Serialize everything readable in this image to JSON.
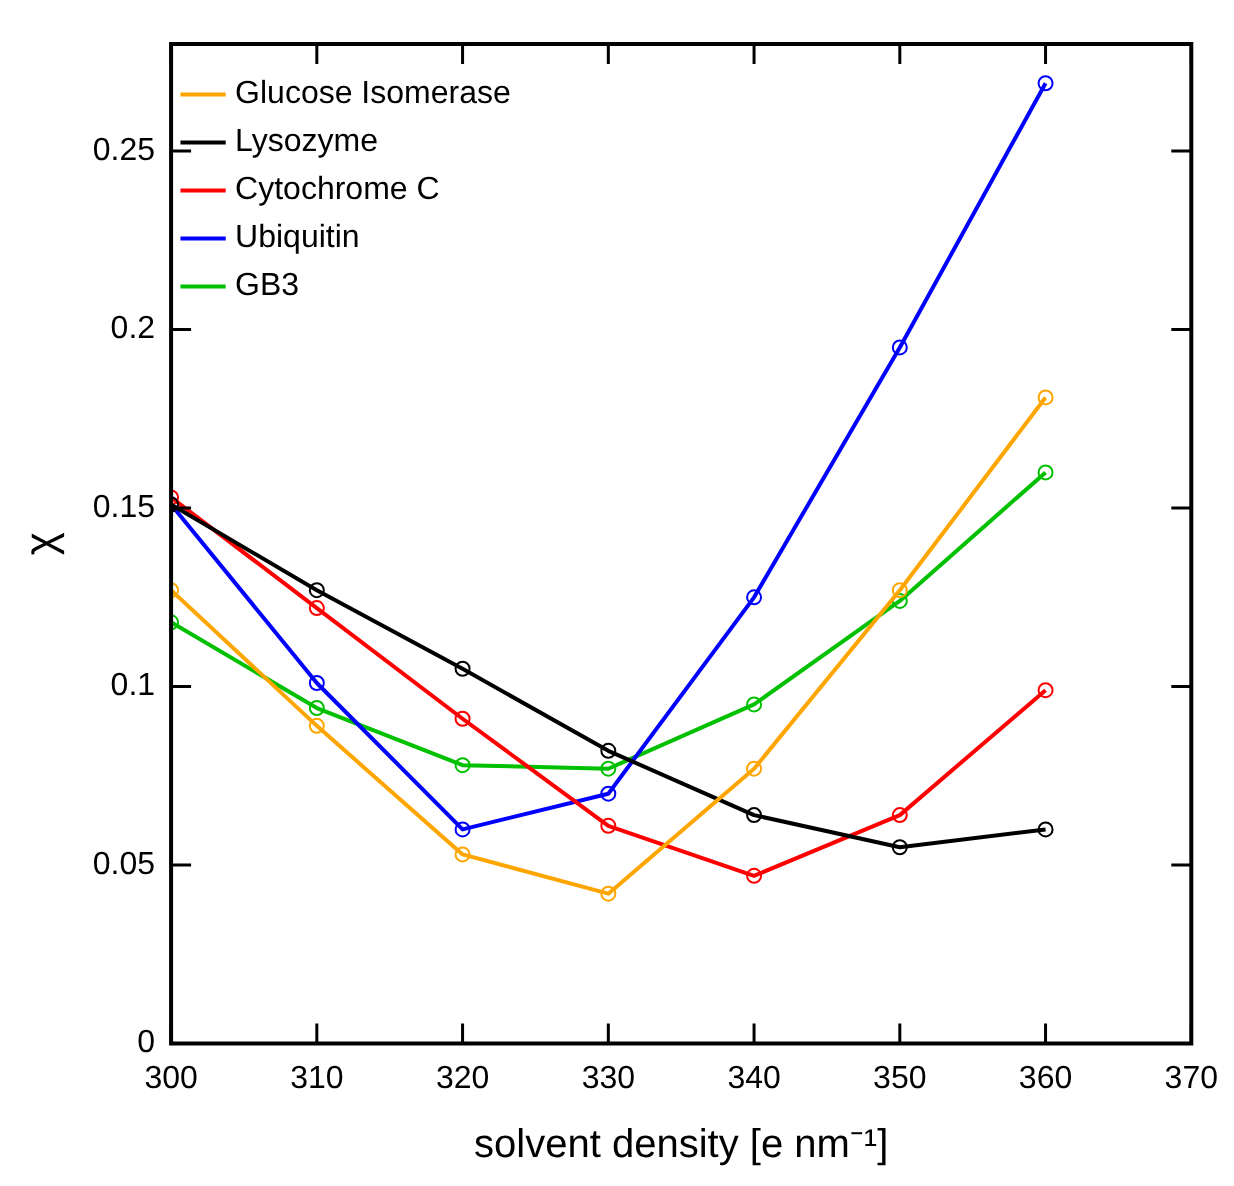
{
  "chart_data": {
    "type": "line",
    "xlabel": "solvent density [e nm⁻¹]",
    "ylabel": "χ",
    "x": [
      300,
      310,
      320,
      330,
      340,
      350,
      360
    ],
    "series": [
      {
        "name": "Glucose Isomerase",
        "color": "#ffa500",
        "values": [
          0.127,
          0.089,
          0.053,
          0.042,
          0.077,
          0.127,
          0.181
        ]
      },
      {
        "name": "Lysozyme",
        "color": "#000000",
        "values": [
          0.151,
          0.127,
          0.105,
          0.082,
          0.064,
          0.055,
          0.06
        ]
      },
      {
        "name": "Cytochrome C",
        "color": "#ff0000",
        "values": [
          0.153,
          0.122,
          0.091,
          0.061,
          0.047,
          0.064,
          0.099
        ]
      },
      {
        "name": "Ubiquitin",
        "color": "#0000ff",
        "values": [
          0.151,
          0.101,
          0.06,
          0.07,
          0.125,
          0.195,
          0.269
        ]
      },
      {
        "name": "GB3",
        "color": "#00c000",
        "values": [
          0.118,
          0.094,
          0.078,
          0.077,
          0.095,
          0.124,
          0.16
        ]
      }
    ],
    "xlim": [
      300,
      370
    ],
    "xticks": [
      300,
      310,
      320,
      330,
      340,
      350,
      360,
      370
    ],
    "ylim": [
      0,
      0.28
    ],
    "yticks": [
      0,
      0.05,
      0.1,
      0.15,
      0.2,
      0.25
    ],
    "grid": false,
    "legend": "top left",
    "marker": "circle",
    "line_style": "solid"
  }
}
